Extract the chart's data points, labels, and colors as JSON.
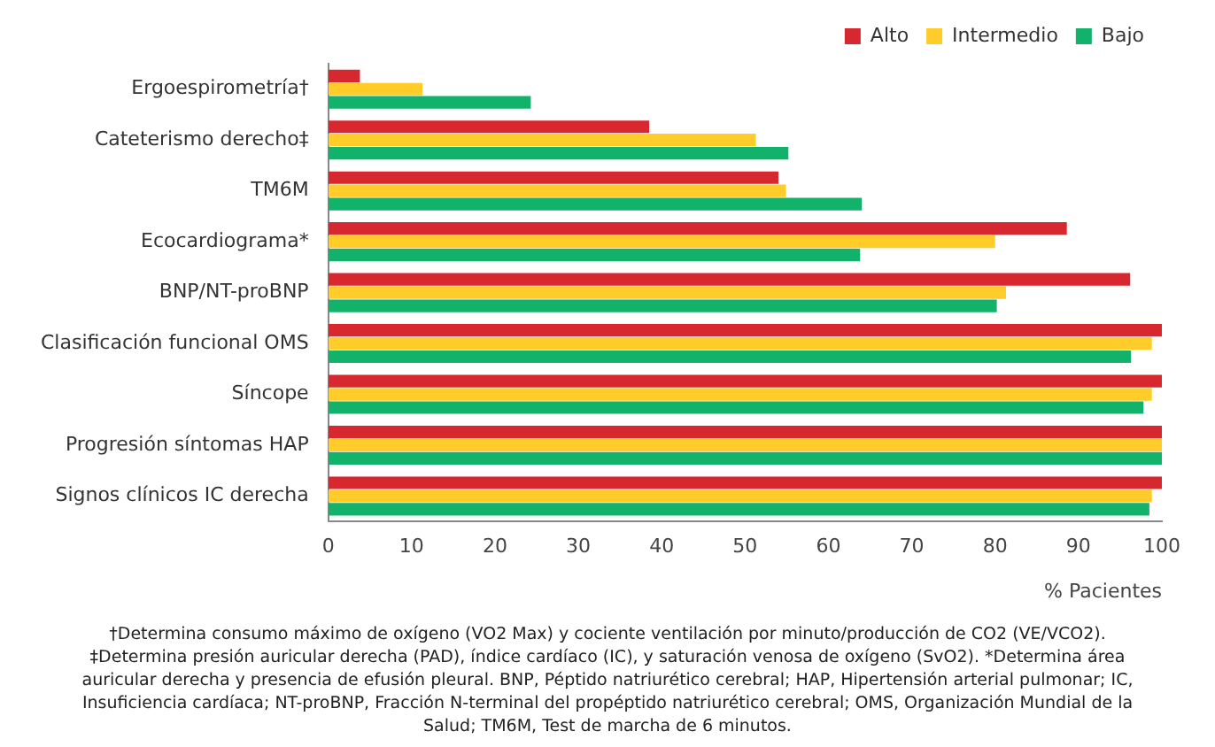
{
  "chart_data": {
    "type": "bar",
    "orientation": "horizontal",
    "categories": [
      "Ergoespirometría†",
      "Cateterismo derecho‡",
      "TM6M",
      "Ecocardiograma*",
      "BNP/NT-proBNP",
      "Clasificación funcional OMS",
      "Síncope",
      "Progresión síntomas HAP",
      "Signos clínicos IC derecha"
    ],
    "series": [
      {
        "name": "Alto",
        "color": "#d7282f",
        "values": [
          3.8,
          38.5,
          54,
          88.6,
          96.2,
          100,
          100,
          100,
          100
        ]
      },
      {
        "name": "Intermedio",
        "color": "#ffcc29",
        "values": [
          11.3,
          51.3,
          54.9,
          80,
          81.3,
          98.8,
          98.8,
          100,
          98.8
        ]
      },
      {
        "name": "Bajo",
        "color": "#13b26b",
        "values": [
          24.3,
          55.2,
          64,
          63.8,
          80.2,
          96.3,
          97.8,
          100,
          98.5
        ]
      }
    ],
    "xlim": [
      0,
      100
    ],
    "xticks": [
      0,
      10,
      20,
      30,
      40,
      50,
      60,
      70,
      80,
      90,
      100
    ],
    "xlabel": "% Pacientes",
    "grid": false,
    "legend": "top right",
    "annotations": [
      "†Determina consumo máximo de oxígeno (VO2 Max) y cociente ventilación  por minuto/producción de CO2 (VE/VCO2). ‡Determina presión auricular derecha (PAD), índice cardíaco (IC), y saturación venosa de oxígeno (SvO2). *Determina área auricular derecha y presencia de efusión pleural. BNP, Péptido natriurético cerebral; HAP, Hipertensión arterial pulmonar; IC, Insuficiencia cardíaca; NT-proBNP, Fracción N-terminal del propéptido natriurético cerebral; OMS, Organización Mundial de la Salud;  TM6M, Test de marcha de 6 minutos."
    ]
  }
}
